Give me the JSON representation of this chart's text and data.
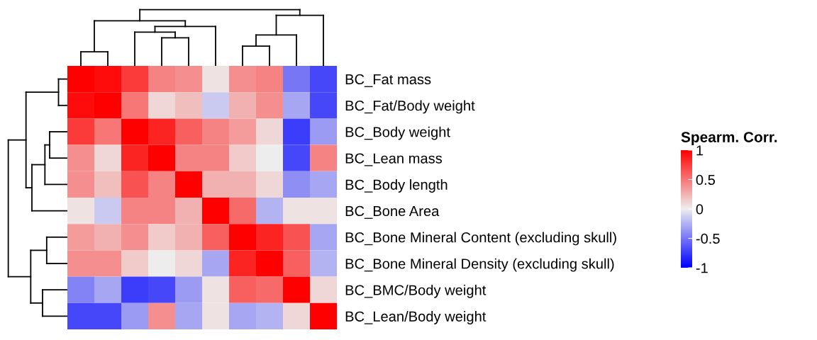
{
  "chart_data": {
    "type": "heatmap",
    "clabel": "Spearm. Corr.",
    "categories": [
      null,
      null,
      null,
      null,
      null,
      null,
      null,
      null,
      null,
      null
    ],
    "y_categories": [
      "BC_Fat mass",
      "BC_Fat/Body weight",
      "BC_Body weight",
      "BC_Lean mass",
      "BC_Body length",
      "BC_Bone Area",
      "BC_Bone Mineral Content (excluding skull)",
      "BC_Bone Mineral Density (excluding skull)",
      "BC_BMC/Body weight",
      "BC_Lean/Body weight"
    ],
    "cells": [
      [
        1.0,
        0.95,
        0.75,
        0.45,
        0.4,
        0.05,
        0.4,
        0.45,
        -0.5,
        -0.7
      ],
      [
        0.95,
        1.0,
        0.5,
        0.1,
        0.2,
        -0.15,
        0.25,
        0.4,
        -0.3,
        -0.7
      ],
      [
        0.75,
        0.5,
        1.0,
        0.85,
        0.6,
        0.45,
        0.35,
        0.1,
        -0.75,
        -0.35
      ],
      [
        0.4,
        0.1,
        0.85,
        1.0,
        0.45,
        0.45,
        0.15,
        0.0,
        -0.7,
        0.45
      ],
      [
        0.4,
        0.2,
        0.65,
        0.45,
        1.0,
        0.25,
        0.25,
        0.1,
        -0.4,
        -0.3
      ],
      [
        0.05,
        -0.15,
        0.45,
        0.45,
        0.25,
        1.0,
        0.55,
        -0.25,
        0.05,
        0.05
      ],
      [
        0.35,
        0.25,
        0.4,
        0.15,
        0.25,
        0.6,
        1.0,
        0.85,
        0.65,
        -0.3
      ],
      [
        0.4,
        0.4,
        0.15,
        0.0,
        0.1,
        -0.3,
        0.85,
        1.0,
        0.6,
        -0.25
      ],
      [
        -0.45,
        -0.3,
        -0.75,
        -0.7,
        -0.35,
        0.05,
        0.6,
        0.55,
        1.0,
        0.1
      ],
      [
        -0.7,
        -0.7,
        -0.35,
        0.4,
        -0.3,
        0.05,
        -0.3,
        -0.25,
        0.1,
        1.0
      ]
    ],
    "clim": [
      -1,
      1
    ],
    "cticks": [
      -1,
      -0.5,
      0,
      0.5,
      1
    ]
  }
}
